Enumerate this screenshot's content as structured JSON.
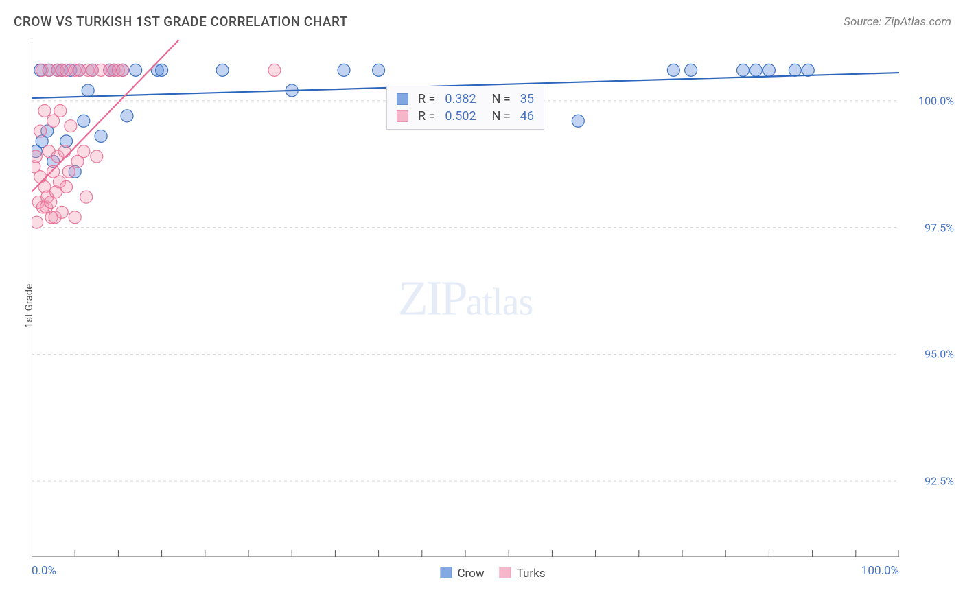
{
  "header": {
    "title": "CROW VS TURKISH 1ST GRADE CORRELATION CHART",
    "source": "Source: ZipAtlas.com"
  },
  "ylabel": "1st Grade",
  "watermark": {
    "zip": "ZIP",
    "atlas": "atlas"
  },
  "chart": {
    "type": "scatter",
    "background_color": "#ffffff",
    "grid_color": "#d8d8d8",
    "grid_dash": "4,4",
    "border_color": "#555555",
    "axis_tick_color": "#555555",
    "label_color": "#4472c4",
    "label_fontsize": 16,
    "xlim": [
      0,
      100
    ],
    "ylim": [
      91,
      101.2
    ],
    "yticks": [
      92.5,
      95.0,
      97.5,
      100.0
    ],
    "ytick_labels": [
      "92.5%",
      "95.0%",
      "97.5%",
      "100.0%"
    ],
    "xticks_minor": [
      5,
      10,
      15,
      20,
      25,
      30,
      35,
      40,
      45,
      50,
      55,
      60,
      65,
      70,
      75,
      80,
      85,
      90,
      95,
      100
    ],
    "xtick_labels": [
      {
        "x": 0,
        "text": "0.0%",
        "align": "start"
      },
      {
        "x": 100,
        "text": "100.0%",
        "align": "end"
      }
    ],
    "marker_radius": 9,
    "marker_fill_opacity": 0.35,
    "marker_stroke_opacity": 0.9,
    "marker_stroke_width": 1.2,
    "line_width": 2.2,
    "series": [
      {
        "key": "crow",
        "label": "Crow",
        "color": "#4f85d6",
        "stroke": "#2e66bb",
        "points": [
          [
            0.5,
            99.0
          ],
          [
            1.0,
            100.6
          ],
          [
            1.2,
            99.2
          ],
          [
            1.8,
            99.4
          ],
          [
            2.0,
            100.6
          ],
          [
            2.5,
            98.8
          ],
          [
            3.0,
            100.6
          ],
          [
            3.5,
            100.6
          ],
          [
            4.0,
            99.2
          ],
          [
            4.5,
            100.6
          ],
          [
            5.0,
            98.6
          ],
          [
            5.5,
            100.6
          ],
          [
            6.0,
            99.6
          ],
          [
            6.5,
            100.2
          ],
          [
            7.0,
            100.6
          ],
          [
            8.0,
            99.3
          ],
          [
            9.0,
            100.6
          ],
          [
            9.5,
            100.6
          ],
          [
            10.5,
            100.6
          ],
          [
            11.0,
            99.7
          ],
          [
            12.0,
            100.6
          ],
          [
            14.5,
            100.6
          ],
          [
            15.0,
            100.6
          ],
          [
            22.0,
            100.6
          ],
          [
            30.0,
            100.2
          ],
          [
            36.0,
            100.6
          ],
          [
            40.0,
            100.6
          ],
          [
            63.0,
            99.6
          ],
          [
            74.0,
            100.6
          ],
          [
            76.0,
            100.6
          ],
          [
            82.0,
            100.6
          ],
          [
            83.5,
            100.6
          ],
          [
            85.0,
            100.6
          ],
          [
            88.0,
            100.6
          ],
          [
            89.5,
            100.6
          ]
        ],
        "regression": {
          "x1": 0,
          "y1": 100.05,
          "x2": 100,
          "y2": 100.55
        }
      },
      {
        "key": "turks",
        "label": "Turks",
        "color": "#f39ab5",
        "stroke": "#e96b95",
        "points": [
          [
            0.3,
            98.7
          ],
          [
            0.5,
            98.9
          ],
          [
            0.6,
            97.6
          ],
          [
            0.8,
            98.0
          ],
          [
            1.0,
            98.5
          ],
          [
            1.0,
            99.4
          ],
          [
            1.2,
            100.6
          ],
          [
            1.3,
            97.9
          ],
          [
            1.5,
            98.3
          ],
          [
            1.5,
            99.8
          ],
          [
            1.7,
            97.9
          ],
          [
            1.8,
            98.1
          ],
          [
            2.0,
            99.0
          ],
          [
            2.0,
            100.6
          ],
          [
            2.2,
            98.0
          ],
          [
            2.3,
            97.7
          ],
          [
            2.5,
            99.6
          ],
          [
            2.5,
            98.6
          ],
          [
            2.7,
            97.7
          ],
          [
            2.8,
            98.2
          ],
          [
            3.0,
            100.6
          ],
          [
            3.0,
            98.9
          ],
          [
            3.2,
            98.4
          ],
          [
            3.3,
            99.8
          ],
          [
            3.5,
            97.8
          ],
          [
            3.5,
            100.6
          ],
          [
            3.8,
            99.0
          ],
          [
            4.0,
            98.3
          ],
          [
            4.0,
            100.6
          ],
          [
            4.3,
            98.6
          ],
          [
            4.5,
            99.5
          ],
          [
            5.0,
            97.7
          ],
          [
            5.0,
            100.6
          ],
          [
            5.3,
            98.8
          ],
          [
            5.5,
            100.6
          ],
          [
            6.0,
            99.0
          ],
          [
            6.3,
            98.1
          ],
          [
            6.5,
            100.6
          ],
          [
            7.0,
            100.6
          ],
          [
            7.5,
            98.9
          ],
          [
            8.0,
            100.6
          ],
          [
            9.0,
            100.6
          ],
          [
            9.5,
            100.6
          ],
          [
            10.0,
            100.6
          ],
          [
            10.5,
            100.6
          ],
          [
            28.0,
            100.6
          ]
        ],
        "regression": {
          "x1": 0,
          "y1": 98.2,
          "x2": 17,
          "y2": 101.2
        }
      }
    ],
    "r_legend": {
      "rows": [
        {
          "swatch": "#4f85d6",
          "stroke": "#2e66bb",
          "rlabel": "R =",
          "r": "0.382",
          "nlabel": "N =",
          "n": "35"
        },
        {
          "swatch": "#f39ab5",
          "stroke": "#e96b95",
          "rlabel": "R =",
          "r": "0.502",
          "nlabel": "N =",
          "n": "46"
        }
      ]
    },
    "x_legend": [
      {
        "swatch": "#4f85d6",
        "stroke": "#2e66bb",
        "label": "Crow"
      },
      {
        "swatch": "#f39ab5",
        "stroke": "#e96b95",
        "label": "Turks"
      }
    ]
  }
}
